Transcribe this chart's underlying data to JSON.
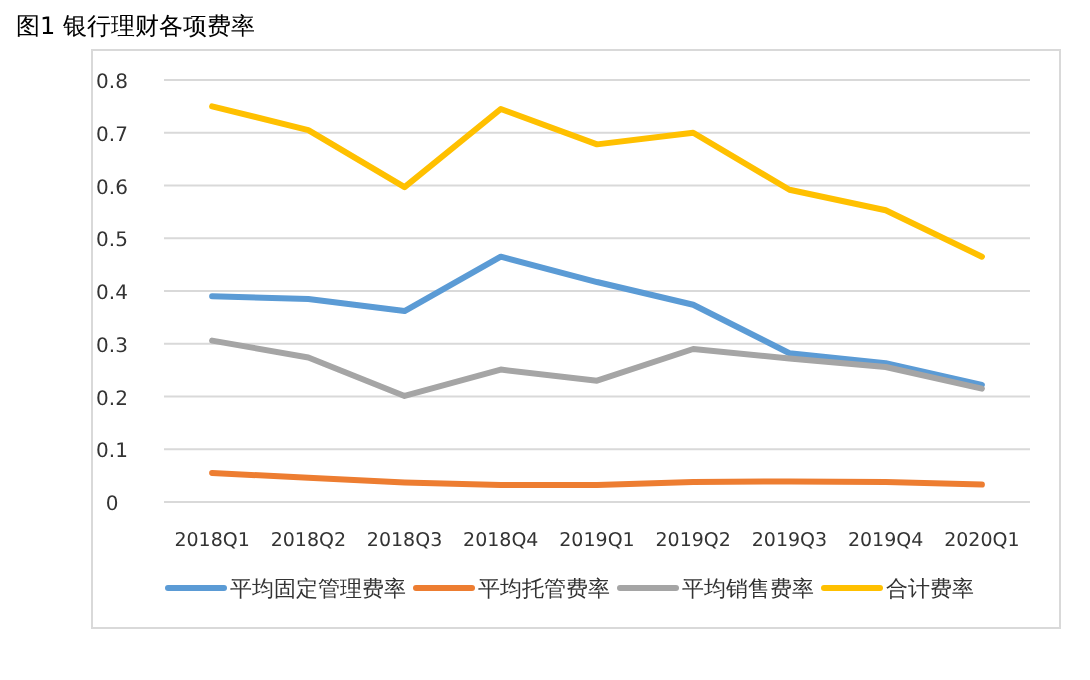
{
  "chart_data": {
    "type": "line",
    "title": "图1 银行理财各项费率",
    "categories": [
      "2018Q1",
      "2018Q2",
      "2018Q3",
      "2018Q4",
      "2019Q1",
      "2019Q2",
      "2019Q3",
      "2019Q4",
      "2020Q1"
    ],
    "series": [
      {
        "name": "平均固定管理费率",
        "color": "#5b9bd5",
        "values": [
          0.39,
          0.385,
          0.362,
          0.465,
          0.417,
          0.374,
          0.282,
          0.263,
          0.222
        ]
      },
      {
        "name": "平均托管费率",
        "color": "#ed7d31",
        "values": [
          0.055,
          0.046,
          0.037,
          0.032,
          0.032,
          0.038,
          0.039,
          0.038,
          0.033
        ]
      },
      {
        "name": "平均销售费率",
        "color": "#a5a5a5",
        "values": [
          0.306,
          0.274,
          0.201,
          0.251,
          0.23,
          0.29,
          0.272,
          0.256,
          0.215
        ]
      },
      {
        "name": "合计费率",
        "color": "#ffc000",
        "values": [
          0.75,
          0.705,
          0.597,
          0.745,
          0.678,
          0.7,
          0.592,
          0.553,
          0.465
        ]
      }
    ],
    "ylim": [
      0,
      0.8
    ],
    "yticks": [
      0,
      0.1,
      0.2,
      0.3,
      0.4,
      0.5,
      0.6,
      0.7,
      0.8
    ],
    "grid": "y",
    "legend": "bottom",
    "marker": "none",
    "line_style": "solid"
  }
}
